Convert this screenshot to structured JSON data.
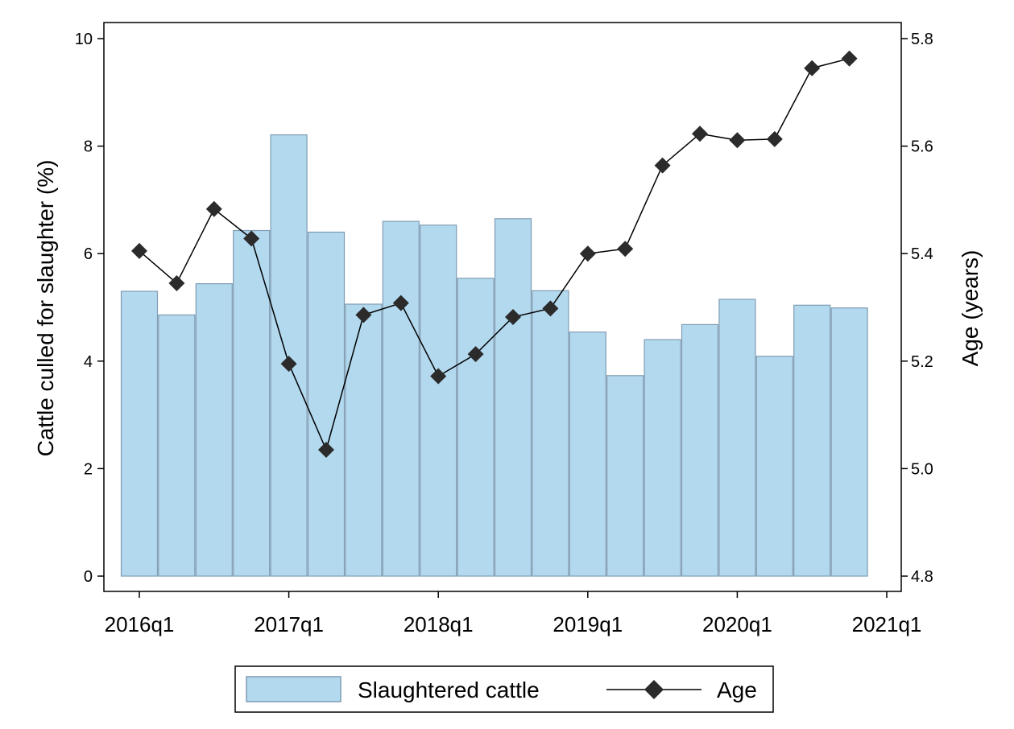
{
  "chart_data": {
    "type": "bar+line",
    "title": "",
    "categories": [
      "2016q1",
      "2016q2",
      "2016q3",
      "2016q4",
      "2017q1",
      "2017q2",
      "2017q3",
      "2017q4",
      "2018q1",
      "2018q2",
      "2018q3",
      "2018q4",
      "2019q1",
      "2019q2",
      "2019q3",
      "2019q4",
      "2020q1",
      "2020q2",
      "2020q3",
      "2020q4"
    ],
    "x_tick_labels": [
      "2016q1",
      "2017q1",
      "2018q1",
      "2019q1",
      "2020q1",
      "2021q1"
    ],
    "series": [
      {
        "name": "Slaughtered cattle",
        "type": "bar",
        "axis": "left",
        "color": "#b3d9ef",
        "edge_color": "#7f9cb2",
        "values": [
          5.3,
          4.86,
          5.44,
          6.43,
          8.21,
          6.4,
          5.06,
          6.6,
          6.53,
          5.54,
          6.65,
          5.31,
          4.54,
          3.73,
          4.4,
          4.68,
          5.15,
          4.09,
          5.04,
          4.99
        ]
      },
      {
        "name": "Age",
        "type": "line",
        "axis": "right",
        "color": "#2b2b2b",
        "marker": "diamond",
        "values": [
          5.405,
          5.345,
          5.483,
          5.428,
          5.195,
          5.035,
          5.286,
          5.308,
          5.172,
          5.213,
          5.282,
          5.298,
          5.4,
          5.409,
          5.564,
          5.623,
          5.611,
          5.613,
          5.745,
          5.763
        ]
      }
    ],
    "ylabel": "Cattle culled for slaughter (%)",
    "ylabel_right": "Age (years)",
    "ylim": [
      0,
      10
    ],
    "ylim_right": [
      4.8,
      5.8
    ],
    "y_ticks": [
      "0",
      "2",
      "4",
      "6",
      "8",
      "10"
    ],
    "y_right_ticks": [
      "4.8",
      "5.0",
      "5.2",
      "5.4",
      "5.6",
      "5.8"
    ],
    "xlabel": "",
    "grid": false,
    "legend_position": "bottom-center"
  },
  "legend": {
    "bar_label": "Slaughtered cattle",
    "line_label": "Age"
  }
}
